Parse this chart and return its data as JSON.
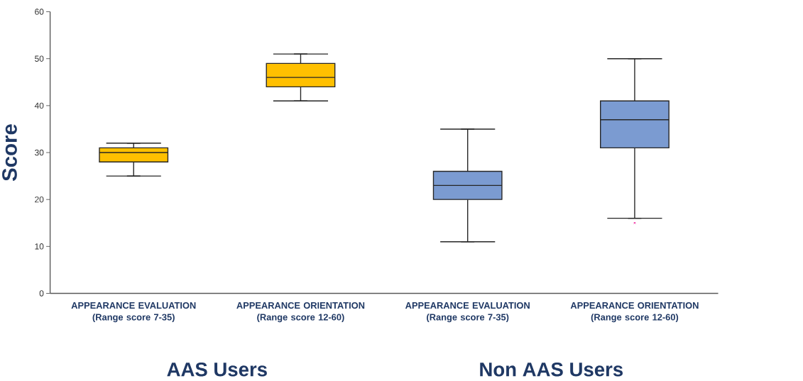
{
  "chart_data": {
    "type": "box",
    "ylabel": "Score",
    "categories": [
      "APPEARANCE EVALUATION (Range score 7-35)",
      "APPEARANCE ORIENTATION (Range score 12-60)",
      "APPEARANCE EVALUATION (Range score 7-35)",
      "APPEARANCE ORIENTATION (Range score 12-60)"
    ],
    "boxes": [
      {
        "low": 25,
        "q1": 28,
        "median": 30,
        "q3": 31,
        "high": 32
      },
      {
        "low": 41,
        "q1": 44,
        "median": 46,
        "q3": 49,
        "high": 51
      },
      {
        "low": 11,
        "q1": 20,
        "median": 23,
        "q3": 26,
        "high": 35
      },
      {
        "low": 16,
        "q1": 31,
        "median": 37,
        "q3": 41,
        "high": 50,
        "outliers": [
          15
        ]
      }
    ],
    "colors": [
      "#ffc000",
      "#ffc000",
      "#7b9bd1",
      "#7b9bd1"
    ],
    "ylim": [
      0,
      60
    ],
    "yticks": [
      0,
      10,
      20,
      30,
      40,
      50,
      60
    ],
    "annotations": [
      "AAS Users",
      "Non AAS Users"
    ]
  }
}
